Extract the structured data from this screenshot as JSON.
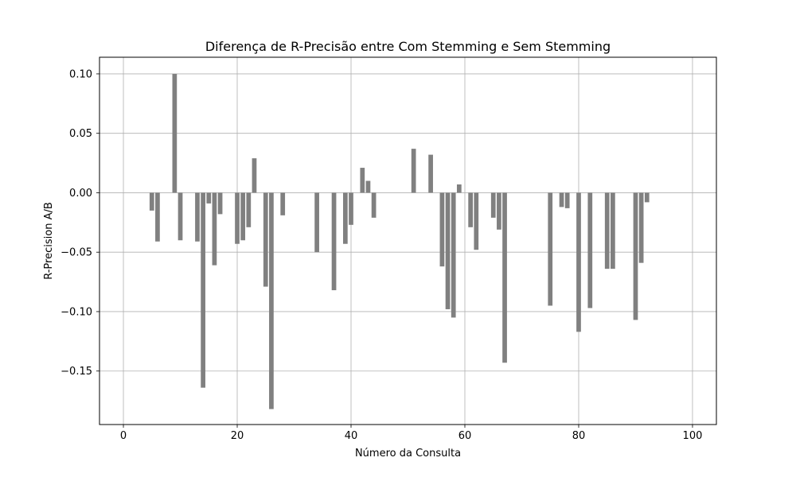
{
  "chart_data": {
    "type": "bar",
    "title": "Diferença de R-Precisão entre Com Stemming e Sem Stemming",
    "xlabel": "Número da Consulta",
    "ylabel": "R-Precision A/B",
    "xlim": [
      -4.2,
      104.2
    ],
    "ylim": [
      -0.195,
      0.114
    ],
    "xticks": [
      0,
      20,
      40,
      60,
      80,
      100
    ],
    "xtick_labels": [
      "0",
      "20",
      "40",
      "60",
      "80",
      "100"
    ],
    "yticks": [
      0.1,
      0.05,
      0.0,
      -0.05,
      -0.1,
      -0.15
    ],
    "ytick_labels": [
      "0.10",
      "0.05",
      "0.00",
      "−0.05",
      "−0.10",
      "−0.15"
    ],
    "grid": true,
    "bar_color": "#808080",
    "x": [
      5,
      6,
      9,
      10,
      13,
      14,
      15,
      16,
      17,
      20,
      21,
      22,
      23,
      25,
      26,
      28,
      34,
      37,
      39,
      40,
      42,
      43,
      44,
      51,
      54,
      56,
      57,
      58,
      59,
      61,
      62,
      65,
      66,
      67,
      75,
      77,
      78,
      80,
      82,
      85,
      86,
      90,
      91,
      92
    ],
    "values": [
      -0.015,
      -0.041,
      0.1,
      -0.04,
      -0.041,
      -0.164,
      -0.009,
      -0.061,
      -0.018,
      -0.043,
      -0.04,
      -0.029,
      0.029,
      -0.079,
      -0.182,
      -0.019,
      -0.05,
      -0.082,
      -0.043,
      -0.027,
      0.021,
      0.01,
      -0.021,
      0.037,
      0.032,
      -0.062,
      -0.098,
      -0.105,
      0.007,
      -0.029,
      -0.048,
      -0.021,
      -0.031,
      -0.143,
      -0.095,
      -0.012,
      -0.013,
      -0.117,
      -0.097,
      -0.064,
      -0.064,
      -0.107,
      -0.059,
      -0.008
    ]
  }
}
